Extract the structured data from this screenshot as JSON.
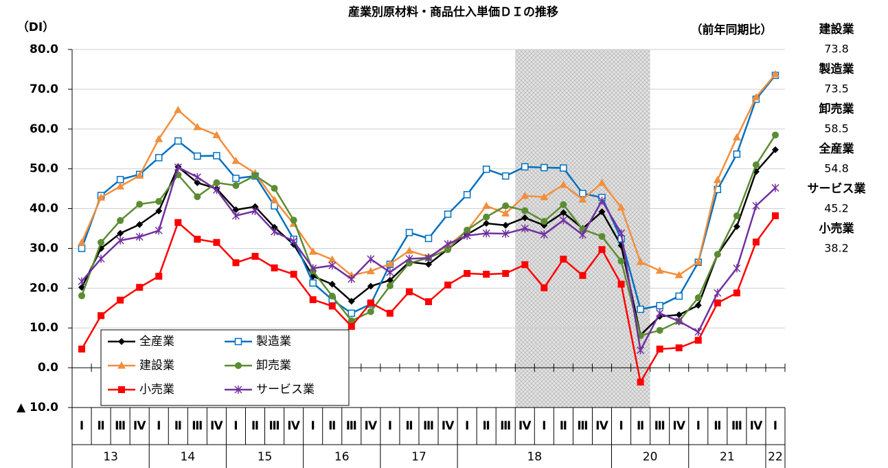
{
  "chart_data": {
    "type": "line",
    "title": "産業別原材料・商品仕入単価ＤＩの推移",
    "y_label": "（DI）",
    "note": "（前年同期比）",
    "categories": [
      "Ⅰ",
      "Ⅱ",
      "Ⅲ",
      "Ⅳ",
      "Ⅰ",
      "Ⅱ",
      "Ⅲ",
      "Ⅳ",
      "Ⅰ",
      "Ⅱ",
      "Ⅲ",
      "Ⅳ",
      "Ⅰ",
      "Ⅱ",
      "Ⅲ",
      "Ⅳ",
      "Ⅰ",
      "Ⅱ",
      "Ⅲ",
      "Ⅳ",
      "Ⅰ",
      "Ⅱ",
      "Ⅲ",
      "Ⅳ",
      "Ⅰ",
      "Ⅱ",
      "Ⅲ",
      "Ⅳ",
      "Ⅰ",
      "Ⅱ",
      "Ⅲ",
      "Ⅳ",
      "Ⅰ",
      "Ⅱ",
      "Ⅲ",
      "Ⅳ",
      "Ⅰ"
    ],
    "x_groups": [
      "13",
      null,
      null,
      null,
      "14",
      null,
      null,
      null,
      "15",
      null,
      null,
      null,
      "16",
      null,
      null,
      null,
      "17",
      null,
      null,
      null,
      "18",
      null,
      null,
      null,
      null,
      null,
      null,
      null,
      "20",
      null,
      null,
      null,
      "21",
      null,
      null,
      null,
      "22"
    ],
    "x_group_labels_extra": null,
    "ylim": [
      -10,
      80
    ],
    "yticks": [
      {
        "value": -10,
        "label": "▲ 10.0"
      },
      {
        "value": 0,
        "label": "0.0"
      },
      {
        "value": 10,
        "label": "10.0"
      },
      {
        "value": 20,
        "label": "20.0"
      },
      {
        "value": 30,
        "label": "30.0"
      },
      {
        "value": 40,
        "label": "40.0"
      },
      {
        "value": 50,
        "label": "50.0"
      },
      {
        "value": 60,
        "label": "60.0"
      },
      {
        "value": 70,
        "label": "70.0"
      },
      {
        "value": 80,
        "label": "80.0"
      }
    ],
    "grid": true,
    "shaded_categories": [
      23,
      29
    ],
    "series": [
      {
        "name": "全産業",
        "color": "#000000",
        "marker": "diamond",
        "values": [
          20.2,
          30,
          33.8,
          36,
          39.4,
          50.5,
          46.5,
          45,
          39.7,
          40.5,
          35.3,
          31,
          23,
          21,
          16.7,
          20.5,
          22,
          26.6,
          26,
          29.8,
          33.5,
          36.3,
          35.8,
          37.7,
          35.8,
          39,
          35,
          39.2,
          30.7,
          8.2,
          12.9,
          13.3,
          15.7,
          28.5,
          35.5,
          49.3,
          54.8
        ]
      },
      {
        "name": "製造業",
        "color": "#0070c0",
        "marker": "square-open",
        "values": [
          30,
          43.3,
          47.3,
          48.6,
          52.8,
          57,
          53.2,
          53.3,
          47.6,
          48.2,
          40.7,
          32.3,
          21.3,
          17.1,
          13.7,
          16,
          26,
          34,
          32.5,
          38.6,
          43.5,
          49.9,
          48.2,
          50.5,
          50.3,
          50.2,
          43.8,
          42.8,
          32.4,
          14.7,
          15.6,
          18,
          26.5,
          44.8,
          53.7,
          67.5,
          73.5
        ]
      },
      {
        "name": "建設業",
        "color": "#f28e3c",
        "marker": "triangle",
        "values": [
          31.5,
          42.8,
          45.6,
          48.3,
          57.5,
          64.8,
          60.5,
          58.5,
          52,
          48.9,
          42.2,
          36.2,
          29.2,
          27.2,
          23.2,
          24.3,
          26.1,
          29.4,
          27.9,
          30.6,
          34.5,
          40.7,
          38.8,
          43.2,
          42.9,
          46,
          42.3,
          46.5,
          40.3,
          26.6,
          24.4,
          23.3,
          26.6,
          47.2,
          57.9,
          68,
          73.8
        ]
      },
      {
        "name": "卸売業",
        "color": "#5b8c32",
        "marker": "circle",
        "values": [
          18.1,
          31.5,
          37,
          41.1,
          41.8,
          48.5,
          43,
          46.5,
          45.8,
          48.3,
          45.1,
          37.1,
          24.3,
          18,
          11.8,
          14.1,
          20.6,
          26.3,
          27.6,
          29.7,
          34.6,
          37.9,
          40.7,
          39.5,
          36.8,
          41,
          34.8,
          33,
          26.8,
          8.1,
          9.4,
          11.7,
          17.6,
          28.5,
          38.2,
          51,
          58.5
        ]
      },
      {
        "name": "小売業",
        "color": "#ff0000",
        "marker": "square",
        "values": [
          4.7,
          13.1,
          17,
          20.2,
          23,
          36.5,
          32.3,
          31.5,
          26.4,
          28,
          25.1,
          23.5,
          17.1,
          15.5,
          10.4,
          16.3,
          13.7,
          19.1,
          16.6,
          20.8,
          23.7,
          23.5,
          23.7,
          25.9,
          20.1,
          27.3,
          23.2,
          29.7,
          21,
          -3.6,
          4.7,
          5,
          6.9,
          16.3,
          18.8,
          31.6,
          38.2
        ]
      },
      {
        "name": "サービス業",
        "color": "#7030a0",
        "marker": "star",
        "values": [
          21.7,
          27.4,
          32,
          32.9,
          34.5,
          50.4,
          47.9,
          44.7,
          38.2,
          39.4,
          34.2,
          31.8,
          25,
          25.7,
          22.3,
          27.3,
          24,
          27.4,
          27.6,
          31.1,
          33.2,
          33.8,
          33.7,
          35,
          33.5,
          37.1,
          33.4,
          42,
          33.8,
          4.4,
          13.7,
          11.7,
          9,
          18.8,
          25,
          40.7,
          45.2
        ]
      }
    ]
  }
}
